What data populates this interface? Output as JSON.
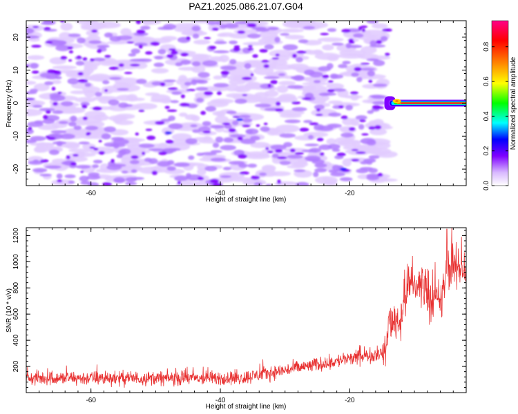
{
  "figure": {
    "title": "PAZ1.2025.086.21.07.G04"
  },
  "chart_data": [
    {
      "type": "heatmap",
      "name": "spectrogram",
      "xlabel": "Height of straight line (km)",
      "ylabel": "Frequency (Hz)",
      "xlim": [
        -70,
        -2
      ],
      "ylim": [
        -25,
        25
      ],
      "x_ticks": [
        -60,
        -40,
        -20
      ],
      "y_ticks": [
        -20,
        -10,
        0,
        10,
        20
      ],
      "colorbar": {
        "label": "Normalized spectral amplitude",
        "range": [
          0.0,
          0.95
        ],
        "ticks": [
          0.0,
          0.2,
          0.4,
          0.6,
          0.8
        ],
        "colormap": [
          "#ffffff",
          "#cc99ff",
          "#7f00ff",
          "#0000ff",
          "#00ffff",
          "#00ff00",
          "#ffff00",
          "#ff7f00",
          "#ff0000",
          "#ff007f"
        ]
      },
      "features": [
        {
          "desc_value": "strong narrow band near 0 Hz",
          "x_range": [
            -14,
            -2
          ],
          "freq": 0,
          "amplitude": 0.9
        },
        {
          "desc_value": "diffuse low-level noise",
          "x_range": [
            -70,
            -14
          ],
          "freq_range": [
            -25,
            25
          ],
          "amplitude": 0.15
        }
      ]
    },
    {
      "type": "line",
      "name": "snr",
      "xlabel": "Height of straight line (km)",
      "ylabel": "SNR (10 * v/v)",
      "xlim": [
        -70,
        -2
      ],
      "ylim": [
        0,
        1260
      ],
      "x_ticks": [
        -60,
        -40,
        -20
      ],
      "y_ticks": [
        200,
        400,
        600,
        800,
        1000,
        1200
      ],
      "color": "#e83030",
      "segments": [
        {
          "x": [
            -70,
            -15
          ],
          "mean": 110,
          "spread": 60
        },
        {
          "x": [
            -15,
            -14
          ],
          "mean": 300,
          "spread": 120
        },
        {
          "x": [
            -14,
            -11
          ],
          "mean": 550,
          "spread": 180
        },
        {
          "x": [
            -11,
            -7
          ],
          "mean": 820,
          "spread": 200
        },
        {
          "x": [
            -7,
            -5
          ],
          "mean": 700,
          "spread": 180
        },
        {
          "x": [
            -5,
            -2
          ],
          "mean": 950,
          "spread": 180
        }
      ],
      "peak": {
        "x": -5,
        "y": 1250
      }
    }
  ]
}
